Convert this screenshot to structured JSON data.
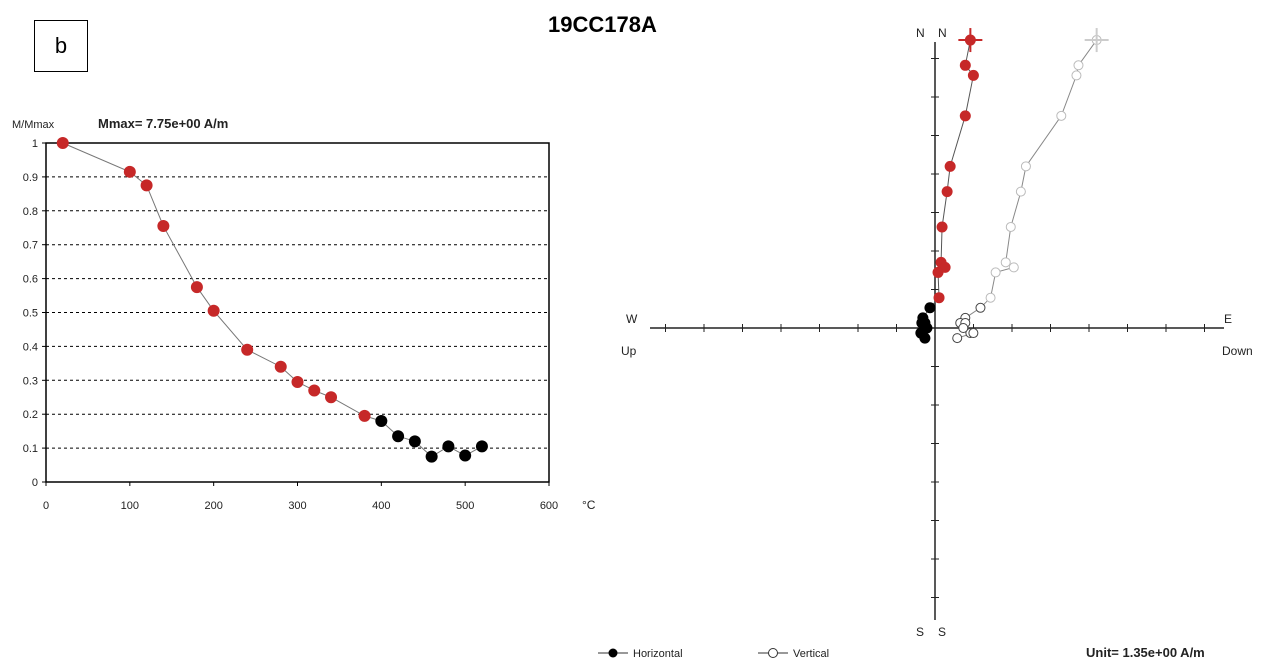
{
  "panel_label": "b",
  "title": "19CC178A",
  "left_chart": {
    "ylabel": "M/Mmax",
    "mmax_text": "Mmax= 7.75e+00  A/m",
    "xunit": "°C"
  },
  "zij": {
    "n_labels": [
      "N",
      "N"
    ],
    "s_labels": [
      "S",
      "S"
    ],
    "w_label": "W",
    "up_label": "Up",
    "e_label": "E",
    "down_label": "Down",
    "legend_horizontal": "Horizontal",
    "legend_vertical": "Vertical",
    "unit_text": "Unit=  1.35e+00 A/m"
  },
  "colors": {
    "red": "#c62828",
    "black": "#000000",
    "line": "#777777"
  },
  "chart_data": [
    {
      "type": "scatter",
      "title": "19CC178A",
      "xlabel": "°C",
      "ylabel": "M/Mmax",
      "xlim": [
        0,
        600
      ],
      "ylim": [
        0,
        1
      ],
      "xticks": [
        0,
        100,
        200,
        300,
        400,
        500,
        600
      ],
      "yticks": [
        0,
        0.1,
        0.2,
        0.3,
        0.4,
        0.5,
        0.6,
        0.7,
        0.8,
        0.9,
        1
      ],
      "grid": "horizontal dashed",
      "series": [
        {
          "color": "#c62828",
          "x": [
            20,
            100,
            120,
            140,
            180,
            200,
            240,
            280,
            300,
            320,
            340,
            380
          ],
          "y": [
            1.0,
            0.915,
            0.875,
            0.755,
            0.575,
            0.505,
            0.39,
            0.34,
            0.295,
            0.27,
            0.25,
            0.195
          ]
        },
        {
          "color": "#000000",
          "x": [
            400,
            420,
            440,
            460,
            480,
            500,
            520
          ],
          "y": [
            0.18,
            0.135,
            0.12,
            0.075,
            0.105,
            0.078,
            0.105
          ]
        }
      ]
    },
    {
      "type": "scatter",
      "title": "19CC178A",
      "xlim": [
        -2.9,
        2.9
      ],
      "ylim": [
        -2.9,
        2.9
      ],
      "series": [
        {
          "name": "Horizontal",
          "x": [
            0.35,
            0.3,
            0.38,
            0.3,
            0.15,
            0.12,
            0.07,
            0.06,
            0.1,
            0.03,
            0.04,
            -0.05,
            -0.12,
            -0.1,
            -0.14,
            -0.13,
            -0.08,
            -0.13,
            -0.1
          ],
          "y": [
            2.85,
            2.6,
            2.5,
            2.1,
            1.6,
            1.35,
            1.0,
            0.65,
            0.6,
            0.55,
            0.3,
            0.2,
            0.1,
            0.05,
            -0.05,
            0.05,
            0.0,
            -0.05,
            -0.1
          ],
          "color_by_step": [
            "#c62828",
            "#c62828",
            "#c62828",
            "#c62828",
            "#c62828",
            "#c62828",
            "#c62828",
            "#c62828",
            "#c62828",
            "#c62828",
            "#c62828",
            "#000000",
            "#000000",
            "#000000",
            "#000000",
            "#000000",
            "#000000",
            "#000000",
            "#000000"
          ]
        },
        {
          "name": "Vertical",
          "x": [
            1.6,
            1.42,
            1.4,
            1.25,
            0.9,
            0.85,
            0.75,
            0.7,
            0.78,
            0.6,
            0.55,
            0.45,
            0.3,
            0.25,
            0.35,
            0.3,
            0.28,
            0.38,
            0.22
          ],
          "y": [
            2.85,
            2.6,
            2.5,
            2.1,
            1.6,
            1.35,
            1.0,
            0.65,
            0.6,
            0.55,
            0.3,
            0.2,
            0.1,
            0.05,
            -0.05,
            0.05,
            0.0,
            -0.05,
            -0.1
          ],
          "color": "#ffffff"
        }
      ]
    }
  ]
}
